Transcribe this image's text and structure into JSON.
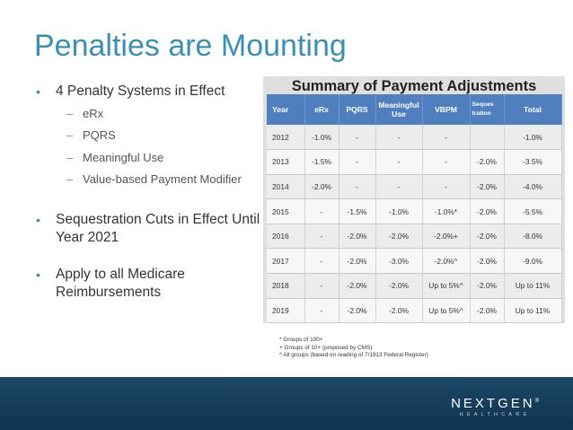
{
  "slide": {
    "title": "Penalties are Mounting"
  },
  "bullets": [
    {
      "text": "4 Penalty Systems in Effect",
      "subs": [
        "eRx",
        "PQRS",
        "Meaningful Use",
        "Value-based Payment Modifier"
      ]
    },
    {
      "text": "Sequestration Cuts in Effect Until Year 2021",
      "subs": []
    },
    {
      "text": "Apply to all Medicare Reimbursements",
      "subs": []
    }
  ],
  "bullet_glyph": "•",
  "sub_glyph": "–",
  "colors": {
    "title": "#3a8fb7",
    "table_header": "#4f7fbe",
    "footer": "#1c4866"
  },
  "table": {
    "title": "Summary of Payment Adjustments",
    "headers": [
      "Year",
      "eRx",
      "PQRS",
      "Meaningful Use",
      "VBPM",
      "Seques tration",
      "Total"
    ],
    "rows": [
      [
        "2012",
        "-1.0%",
        "-",
        "-",
        "-",
        "",
        "-1.0%"
      ],
      [
        "2013",
        "-1.5%",
        "-",
        "-",
        "-",
        "-2.0%",
        "-3.5%"
      ],
      [
        "2014",
        "-2.0%",
        "-",
        "-",
        "-",
        "-2.0%",
        "-4.0%"
      ],
      [
        "2015",
        "-",
        "-1.5%",
        "-1.0%",
        "-1.0%*",
        "-2.0%",
        "-5.5%"
      ],
      [
        "2016",
        "-",
        "-2.0%",
        "-2.0%",
        "-2.0%+",
        "-2.0%",
        "-8.0%"
      ],
      [
        "2017",
        "-",
        "-2.0%",
        "-3.0%",
        "-2.0%^",
        "-2.0%",
        "-9.0%"
      ],
      [
        "2018",
        "-",
        "-2.0%",
        "-2.0%",
        "Up to 5%^",
        "-2.0%",
        "Up to 11%"
      ],
      [
        "2019",
        "-",
        "-2.0%",
        "-2.0%",
        "Up to 5%^",
        "-2.0%",
        "Up to 11%"
      ]
    ]
  },
  "footnotes": [
    "* Groups of 100+",
    "+ Groups of 10+ (proposed by CMS)",
    "^ All groups (based on reading of 7/1913 Federal Register)"
  ],
  "logo": {
    "main": "NEXTGEN",
    "mark": "®",
    "sub": "HEALTHCARE"
  }
}
